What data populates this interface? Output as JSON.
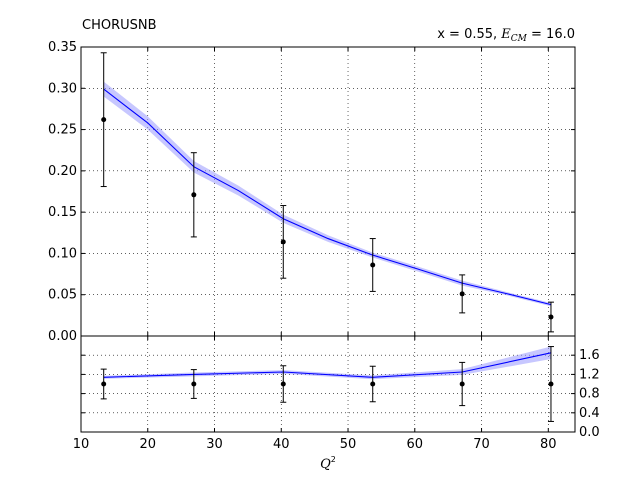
{
  "chart_data": [
    {
      "type": "line",
      "title": "CHORUSNB",
      "annotation": {
        "prefix": "x = 0.55, ",
        "var_main": "E",
        "var_sub": "CM",
        "suffix": " = 16.0"
      },
      "xlim": [
        10,
        84
      ],
      "ylim": [
        0,
        0.35
      ],
      "grid": true,
      "yticks": [
        "0.00",
        "0.05",
        "0.10",
        "0.15",
        "0.20",
        "0.25",
        "0.30",
        "0.35"
      ],
      "series": [
        {
          "kind": "theory_band",
          "color": "#0000ff",
          "band_color": "#9999ff",
          "x": [
            13.4,
            20.0,
            26.9,
            33.6,
            40.3,
            47.0,
            53.7,
            60.5,
            67.1,
            73.9,
            80.4
          ],
          "y": [
            0.299,
            0.258,
            0.205,
            0.176,
            0.142,
            0.118,
            0.098,
            0.081,
            0.064,
            0.051,
            0.038
          ],
          "y_err": [
            0.009,
            0.008,
            0.007,
            0.006,
            0.005,
            0.004,
            0.003,
            0.003,
            0.003,
            0.002,
            0.002
          ]
        },
        {
          "kind": "data_points",
          "color": "#000000",
          "x": [
            13.4,
            26.9,
            40.3,
            53.7,
            67.1,
            80.4
          ],
          "y": [
            0.262,
            0.171,
            0.114,
            0.086,
            0.051,
            0.023
          ],
          "y_err": [
            0.081,
            0.051,
            0.044,
            0.032,
            0.023,
            0.018
          ]
        }
      ]
    },
    {
      "type": "line",
      "xlabel": "Q",
      "xlabel_sup": "2",
      "xlim": [
        10,
        84
      ],
      "ylim": [
        0,
        2.0
      ],
      "grid": true,
      "yticks": [
        "0.0",
        "0.4",
        "0.8",
        "1.2",
        "1.6"
      ],
      "xticks": [
        "10",
        "20",
        "30",
        "40",
        "50",
        "60",
        "70",
        "80"
      ],
      "series": [
        {
          "kind": "ratio_band",
          "color": "#0000ff",
          "band_color": "#9999ff",
          "x": [
            13.4,
            26.9,
            40.3,
            53.7,
            67.1,
            80.4
          ],
          "y": [
            1.14,
            1.2,
            1.25,
            1.14,
            1.25,
            1.65
          ],
          "y_err": [
            0.03,
            0.04,
            0.04,
            0.04,
            0.06,
            0.13
          ]
        },
        {
          "kind": "ratio_points",
          "color": "#000000",
          "x": [
            13.4,
            26.9,
            40.3,
            53.7,
            67.1,
            80.4
          ],
          "y": [
            1.0,
            1.0,
            1.0,
            1.0,
            1.0,
            1.0
          ],
          "y_err": [
            0.31,
            0.3,
            0.38,
            0.37,
            0.45,
            0.78
          ]
        }
      ]
    }
  ]
}
